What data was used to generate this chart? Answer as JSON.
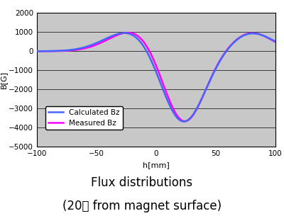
{
  "title_line1": "Flux distributions",
  "title_line2": "(20mm from magnet surface)",
  "xlabel": "h[mm]",
  "ylabel": "B[G]",
  "xlim": [
    -100,
    100
  ],
  "ylim": [
    -5000,
    2000
  ],
  "yticks": [
    -5000,
    -4000,
    -3000,
    -2000,
    -1000,
    0,
    1000,
    2000
  ],
  "xticks": [
    -100,
    -50,
    0,
    50,
    100
  ],
  "bg_color": "#c8c8c8",
  "calc_color": "#4466ff",
  "meas_color": "#ff00ff",
  "legend_labels": [
    "Calculated Bz",
    "Measured Bz"
  ],
  "peak_x": -20,
  "peak_val": 1100,
  "trough_x": 22,
  "trough_val": -3800
}
